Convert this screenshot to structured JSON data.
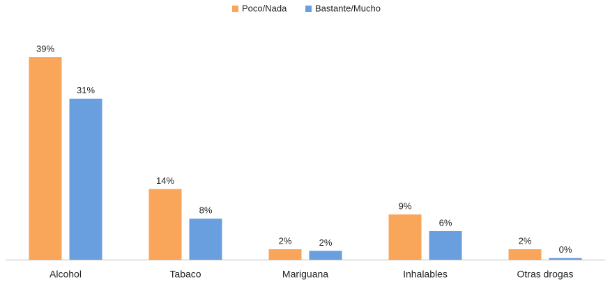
{
  "chart_data": {
    "type": "bar",
    "categories": [
      "Alcohol",
      "Tabaco",
      "Mariguana",
      "Inhalables",
      "Otras drogas"
    ],
    "series": [
      {
        "name": "Poco/Nada",
        "color": "#f9a65a",
        "values": [
          39,
          13.6,
          2,
          8.7,
          2
        ],
        "value_labels": [
          "39%",
          "14%",
          "2%",
          "9%",
          "2%"
        ]
      },
      {
        "name": "Bastante/Mucho",
        "color": "#6a9fdf",
        "values": [
          31,
          7.9,
          1.7,
          5.5,
          0.3
        ],
        "value_labels": [
          "31%",
          "8%",
          "2%",
          "6%",
          "0%"
        ]
      }
    ],
    "legend": "top"
  }
}
